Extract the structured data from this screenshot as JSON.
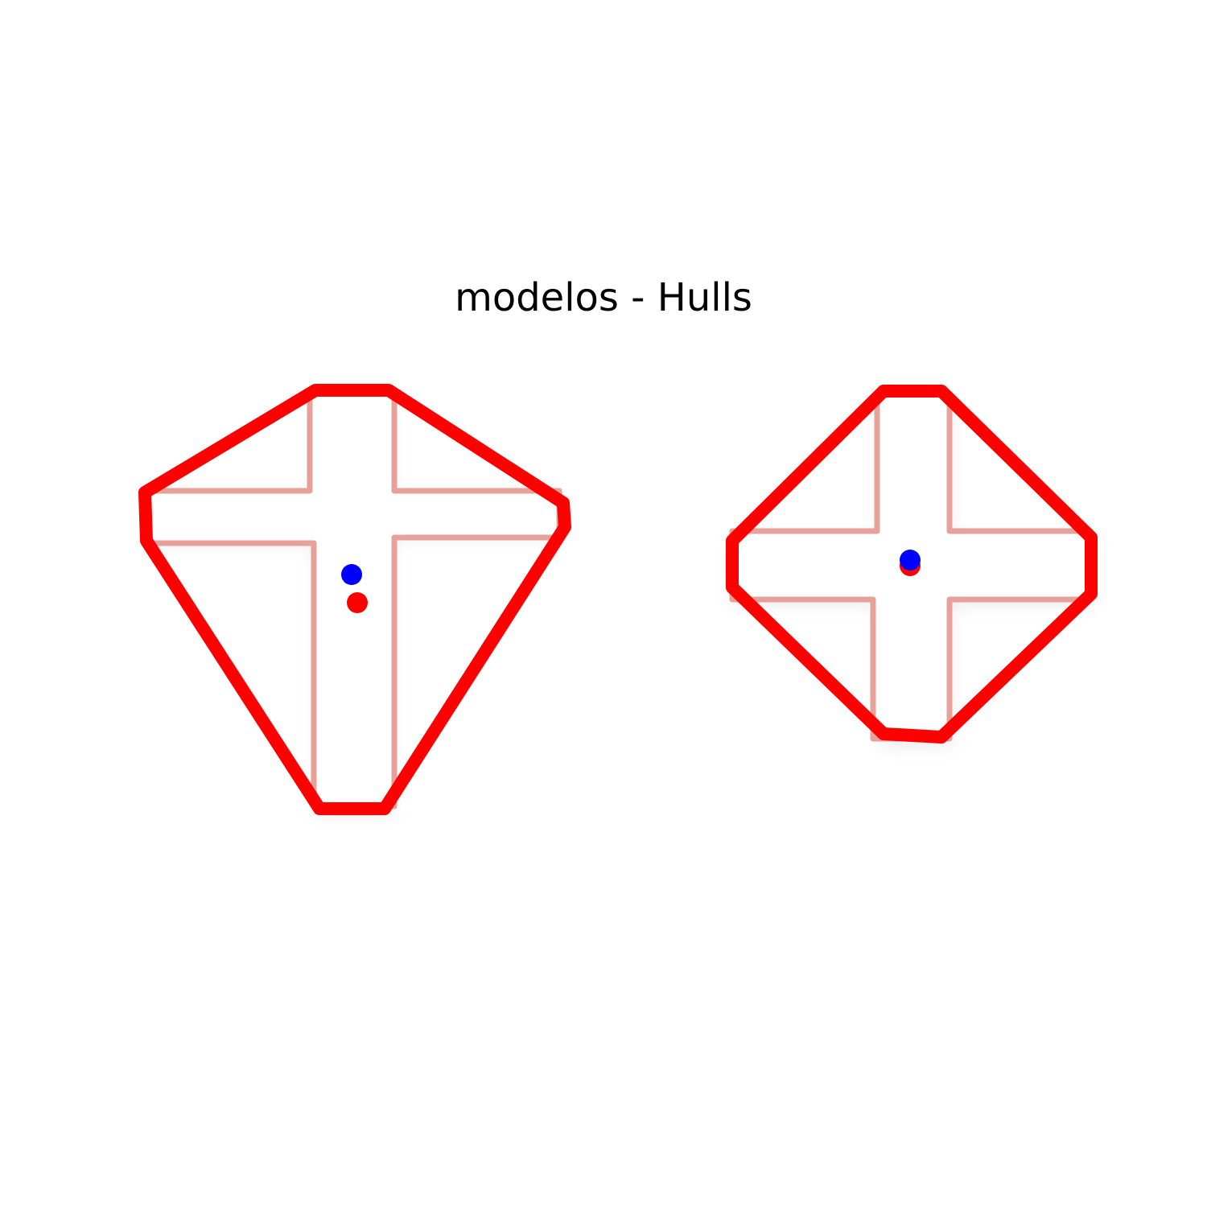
{
  "figure": {
    "title": "modelos - Hulls"
  },
  "colors": {
    "hull": "#ff0000",
    "shape_fill": "#ffffff",
    "shape_edge": "#e8a09a",
    "shape_shadow": "#f1f1f1",
    "centroid_blue": "#0000ff",
    "centroid_red": "#ff0000"
  },
  "models": [
    {
      "name": "cross-model-left",
      "shape": "latin-cross"
    },
    {
      "name": "cross-model-right",
      "shape": "plus-cross"
    }
  ]
}
